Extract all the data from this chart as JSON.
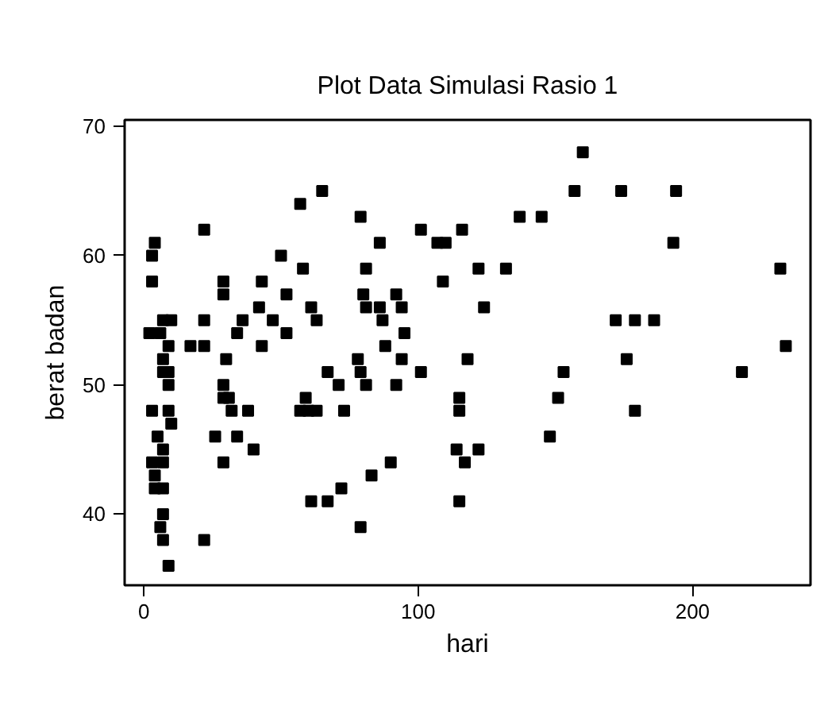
{
  "chart_data": {
    "type": "scatter",
    "title": "Plot Data Simulasi Rasio 1",
    "xlabel": "hari",
    "ylabel": "berat badan",
    "xlim": [
      -7,
      243
    ],
    "ylim": [
      34.5,
      70.5
    ],
    "xticks": [
      0,
      100,
      200
    ],
    "yticks": [
      40,
      50,
      60,
      70
    ],
    "grid": false,
    "marker": "square",
    "series": [
      {
        "color": "#000000",
        "x": [
          65,
          57,
          22,
          4,
          3,
          50,
          58,
          3,
          29,
          43,
          29,
          52,
          42,
          61,
          7,
          10,
          22,
          36,
          47,
          63,
          2,
          6,
          34,
          52,
          9,
          17,
          22,
          43,
          7,
          30,
          7,
          9,
          67,
          9,
          29,
          71,
          29,
          31,
          59,
          3,
          9,
          32,
          38,
          57,
          60,
          63,
          73,
          10,
          5,
          26,
          34,
          7,
          40,
          3,
          7,
          29,
          4,
          4,
          7,
          72,
          61,
          67,
          7,
          6,
          7,
          22,
          9,
          157,
          79,
          137,
          145,
          101,
          116,
          86,
          107,
          110,
          81,
          122,
          132,
          109,
          80,
          92,
          81,
          86,
          94,
          124,
          87,
          95,
          88,
          78,
          94,
          118,
          79,
          101,
          153,
          81,
          92,
          115,
          115,
          151,
          148,
          114,
          122,
          90,
          117,
          83,
          115,
          79,
          160,
          174,
          194,
          193,
          232,
          172,
          179,
          186,
          234,
          176,
          218,
          179
        ],
        "values": [
          65,
          64,
          62,
          61,
          60,
          60,
          59,
          58,
          58,
          58,
          57,
          57,
          56,
          56,
          55,
          55,
          55,
          55,
          55,
          55,
          54,
          54,
          54,
          54,
          53,
          53,
          53,
          53,
          52,
          52,
          51,
          51,
          51,
          50,
          50,
          50,
          49,
          49,
          49,
          48,
          48,
          48,
          48,
          48,
          48,
          48,
          48,
          47,
          46,
          46,
          46,
          45,
          45,
          44,
          44,
          44,
          43,
          42,
          42,
          42,
          41,
          41,
          40,
          39,
          38,
          38,
          36,
          65,
          63,
          63,
          63,
          62,
          62,
          61,
          61,
          61,
          59,
          59,
          59,
          58,
          57,
          57,
          56,
          56,
          56,
          56,
          55,
          54,
          53,
          52,
          52,
          52,
          51,
          51,
          51,
          50,
          50,
          49,
          48,
          49,
          46,
          45,
          45,
          44,
          44,
          43,
          41,
          39,
          68,
          65,
          65,
          61,
          59,
          55,
          55,
          55,
          53,
          52,
          51,
          48
        ]
      }
    ]
  }
}
